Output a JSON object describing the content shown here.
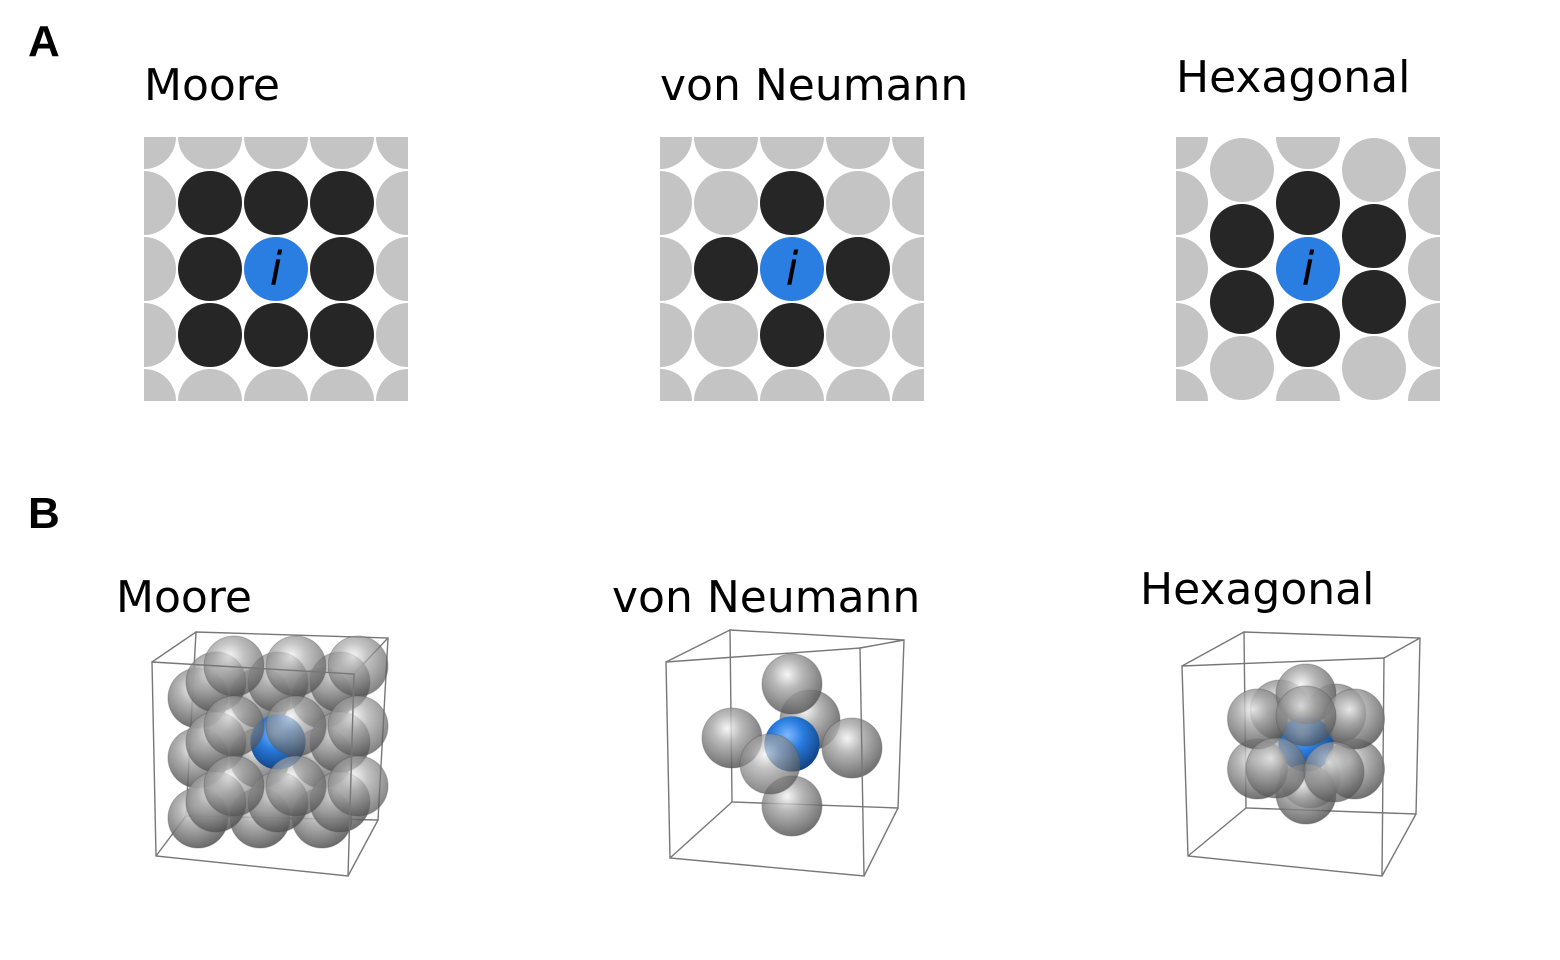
{
  "panels": [
    {
      "label": "A",
      "kind": "2d",
      "diagrams": [
        {
          "title": "Moore",
          "lattice": "square",
          "neighbors": 8
        },
        {
          "title": "von Neumann",
          "lattice": "square",
          "neighbors": 4
        },
        {
          "title": "Hexagonal",
          "lattice": "hexagonal",
          "neighbors": 6
        }
      ]
    },
    {
      "label": "B",
      "kind": "3d",
      "diagrams": [
        {
          "title": "Moore",
          "neighbors": 26
        },
        {
          "title": "von Neumann",
          "neighbors": 6
        },
        {
          "title": "Hexagonal",
          "neighbors": 12
        }
      ]
    }
  ],
  "center_label": "i",
  "colors": {
    "center": "#2a7de1",
    "neighbor": "#262626",
    "background_cell": "#c4c4c4",
    "sphere": "#8a8a8a",
    "box_edge": "#777777"
  }
}
